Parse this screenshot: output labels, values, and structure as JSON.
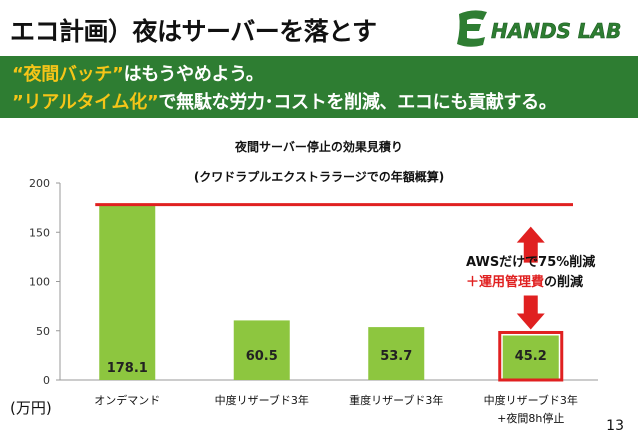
{
  "slide": {
    "title": "エコ計画）夜はサーバーを落とす",
    "logo_text": "HANDS LAB",
    "banner": {
      "line1_highlight": "“夜間バッチ”",
      "line1_rest": "はもうやめよう。",
      "line2_highlight": "”リアルタイム化”",
      "line2_rest": "で無駄な労力･コストを削減、エコにも貢献する。"
    },
    "callout": {
      "line1": "AWSだけで75%削減",
      "line2_red": "＋運用管理費",
      "line2_rest": "の削減"
    },
    "unit_label": "(万円)",
    "page_number": "13"
  },
  "colors": {
    "banner_green": "#2e7d32",
    "highlight_yellow": "#f5c518",
    "bar_green": "#8dc63f",
    "line_red": "#e02020"
  },
  "chart_data": {
    "type": "bar",
    "title": "夜間サーバー停止の効果見積り",
    "subtitle": "(クワドラプルエクストララージでの年額概算)",
    "categories": [
      "オンデマンド",
      "中度リザーブド3年",
      "重度リザーブド3年",
      "中度リザーブド3年"
    ],
    "category_sublabels": [
      "",
      "",
      "",
      "+夜間8h停止"
    ],
    "values": [
      178.1,
      60.5,
      53.7,
      45.2
    ],
    "value_labels": [
      "178.1",
      "60.5",
      "53.7",
      "45.2"
    ],
    "ylim": [
      0,
      200
    ],
    "yticks": [
      0,
      50,
      100,
      150,
      200
    ],
    "reference_line_value": 178.1,
    "highlighted_bar": 3,
    "grid": false,
    "legend": "none"
  }
}
